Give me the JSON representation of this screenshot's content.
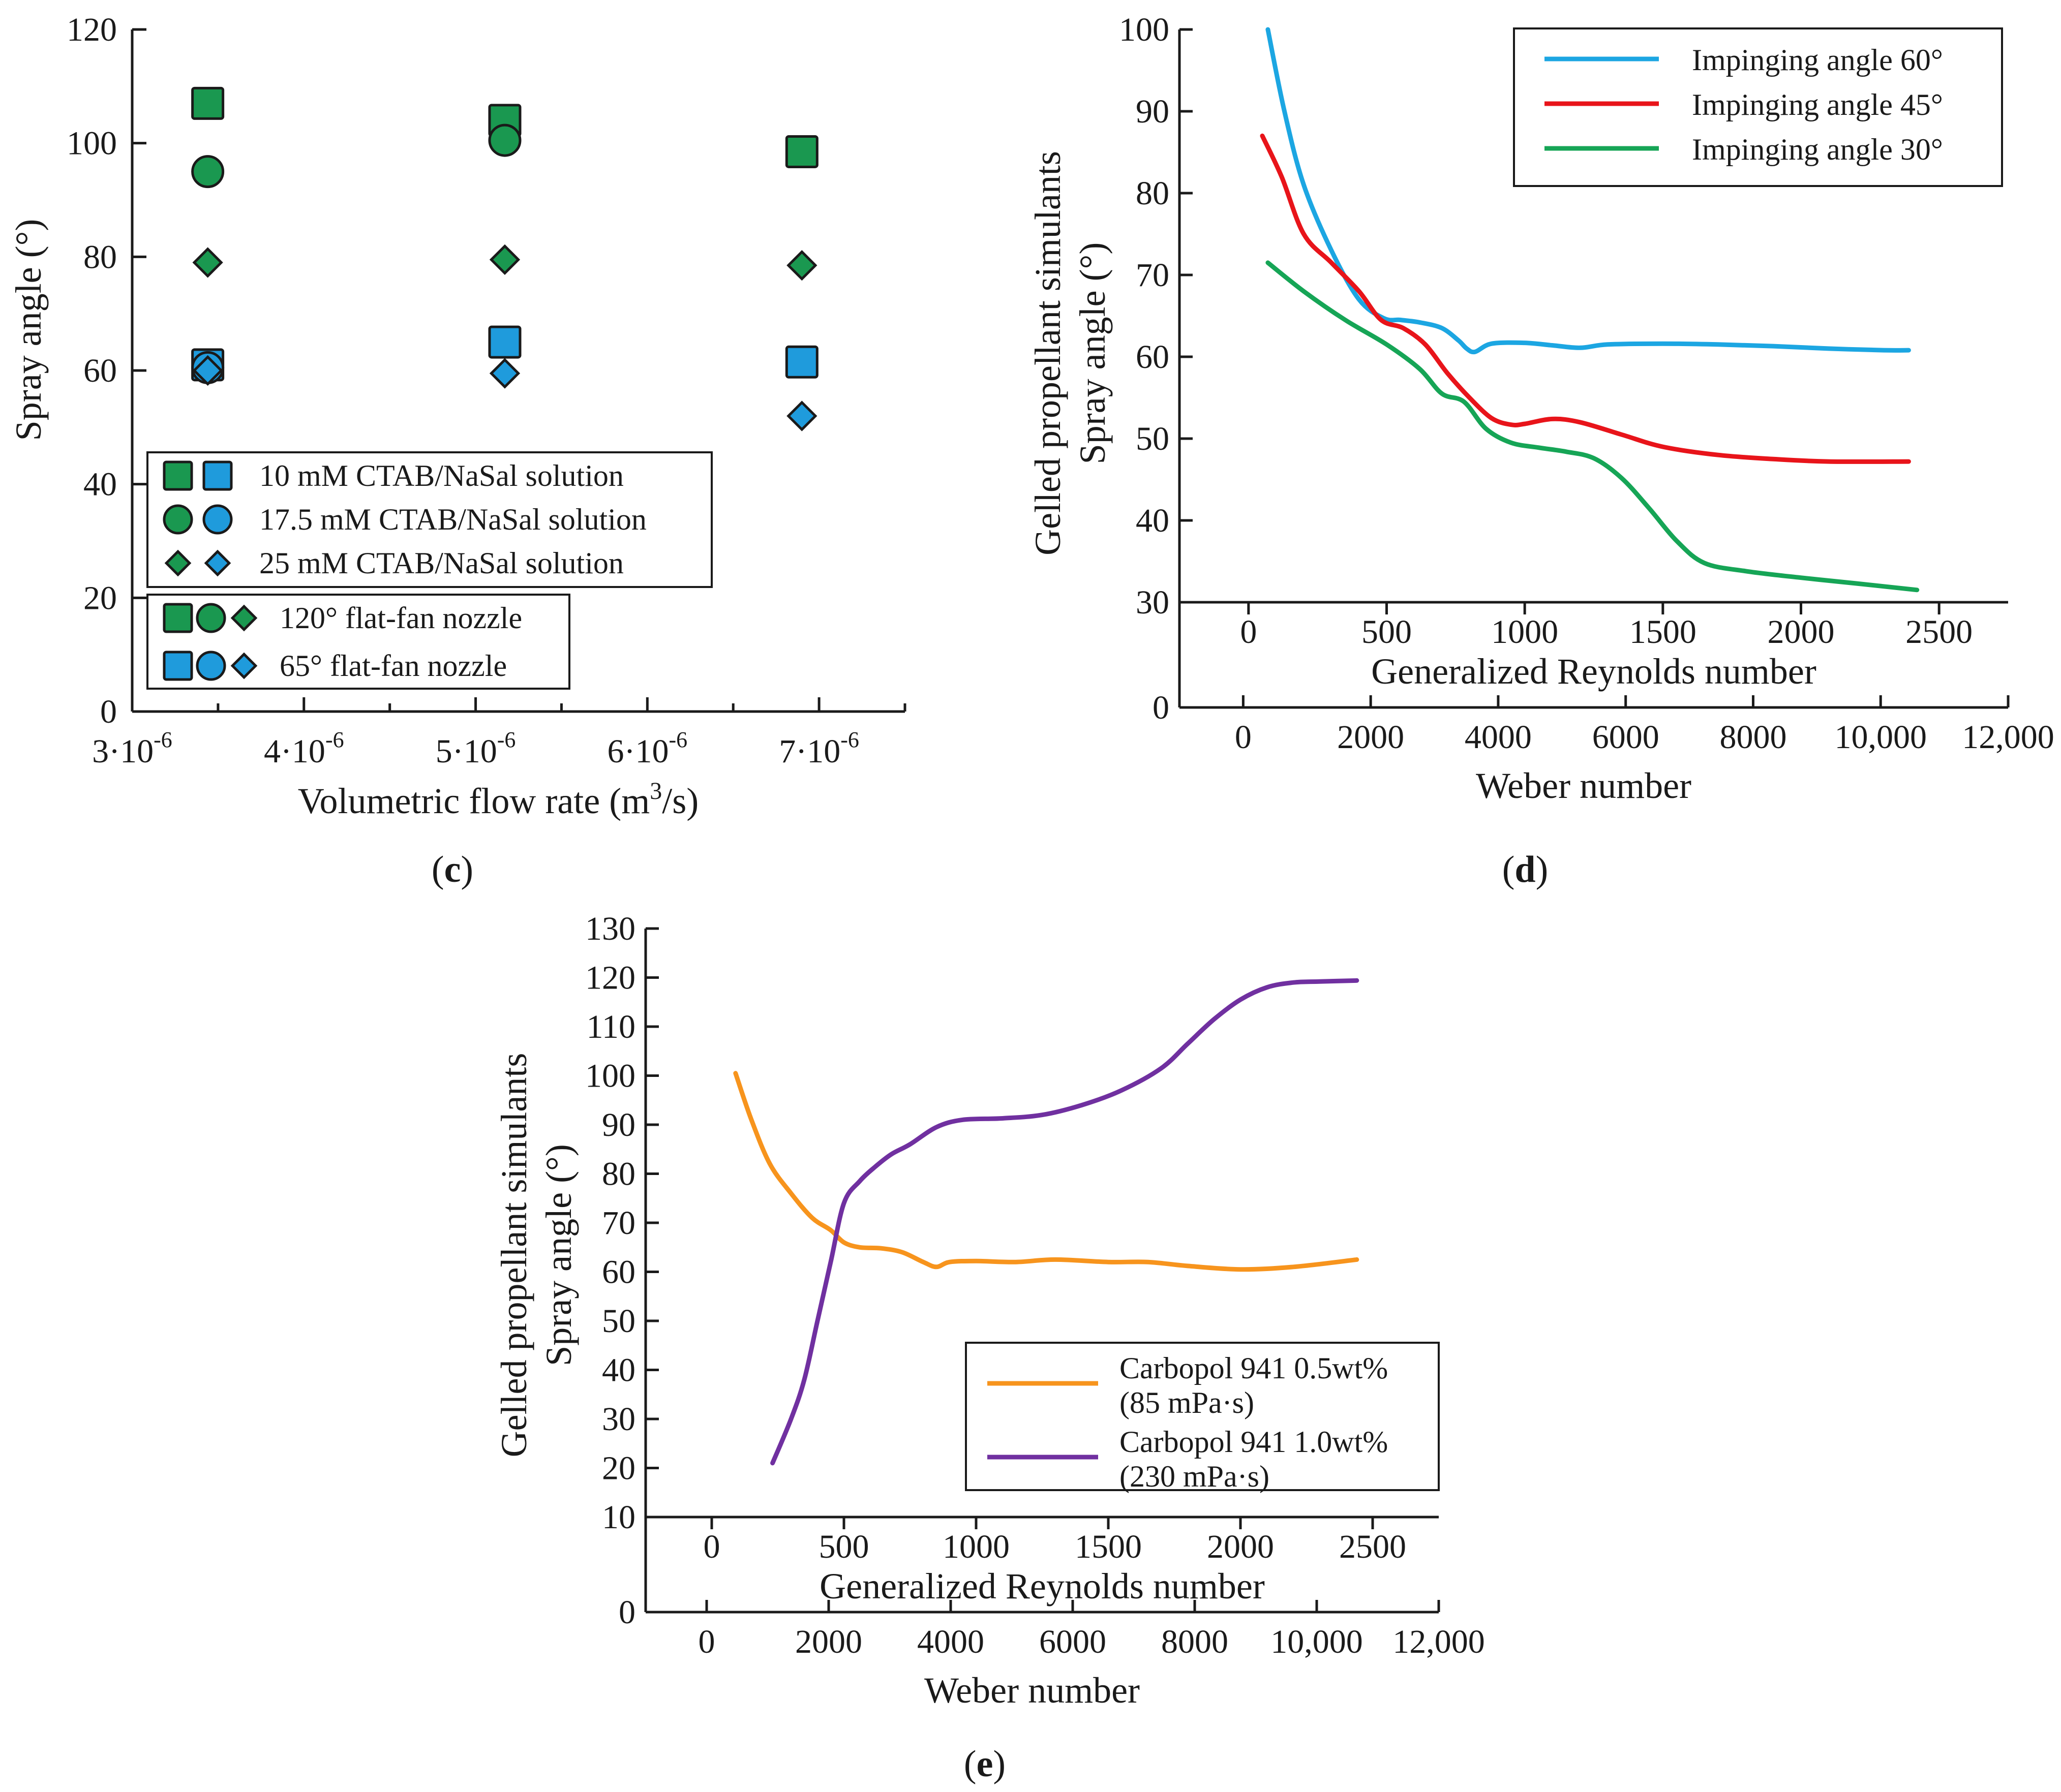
{
  "colors": {
    "green": "#1a9850",
    "blue": "#1f9bdc",
    "sky": "#1ca6e2",
    "red": "#e8141a",
    "green_line": "#16a556",
    "orange": "#f7941d",
    "purple": "#7030a0",
    "axis": "#1a1a1a"
  },
  "panels": {
    "c": {
      "label_prefix": "(",
      "label": "c",
      "label_suffix": ")"
    },
    "d": {
      "label_prefix": "(",
      "label": "d",
      "label_suffix": ")"
    },
    "e": {
      "label_prefix": "(",
      "label": "e",
      "label_suffix": ")"
    }
  },
  "chart_data": [
    {
      "id": "c",
      "type": "scatter",
      "xlabel": "Volumetric flow rate (m³/s)",
      "xlabel_parts": {
        "before": "Volumetric flow rate (m",
        "sup": "3",
        "after": "/s)"
      },
      "ylabel": "Spray angle (°)",
      "xlim": [
        3e-06,
        7.5e-06
      ],
      "ylim": [
        0,
        120
      ],
      "xticks": [
        {
          "value": 3e-06,
          "base": "3·10",
          "exp": "-6"
        },
        {
          "value": 4e-06,
          "base": "4·10",
          "exp": "-6"
        },
        {
          "value": 5e-06,
          "base": "5·10",
          "exp": "-6"
        },
        {
          "value": 6e-06,
          "base": "6·10",
          "exp": "-6"
        },
        {
          "value": 7e-06,
          "base": "7·10",
          "exp": "-6"
        }
      ],
      "yticks": [
        0,
        20,
        40,
        60,
        80,
        100,
        120
      ],
      "series": [
        {
          "name": "10 mM CTAB/NaSal, 120° flat-fan nozzle",
          "marker": "square",
          "color": "green",
          "x": [
            3.44e-06,
            5.17e-06,
            6.9e-06
          ],
          "y": [
            107,
            104,
            98.5
          ]
        },
        {
          "name": "17.5 mM CTAB/NaSal, 120° flat-fan nozzle",
          "marker": "circle",
          "color": "green",
          "x": [
            3.44e-06,
            5.17e-06
          ],
          "y": [
            95,
            100.5
          ]
        },
        {
          "name": "25 mM CTAB/NaSal, 120° flat-fan nozzle",
          "marker": "diamond",
          "color": "green",
          "x": [
            3.44e-06,
            5.17e-06,
            6.9e-06
          ],
          "y": [
            79,
            79.5,
            78.5
          ]
        },
        {
          "name": "10 mM CTAB/NaSal, 65° flat-fan nozzle",
          "marker": "square",
          "color": "blue",
          "x": [
            3.44e-06,
            5.17e-06,
            6.9e-06
          ],
          "y": [
            61,
            65,
            61.5
          ]
        },
        {
          "name": "17.5 mM CTAB/NaSal, 65° flat-fan nozzle",
          "marker": "circle",
          "color": "blue",
          "x": [
            3.44e-06
          ],
          "y": [
            60.5
          ]
        },
        {
          "name": "25 mM CTAB/NaSal, 65° flat-fan nozzle",
          "marker": "diamond",
          "color": "blue",
          "x": [
            3.44e-06,
            5.17e-06,
            6.9e-06
          ],
          "y": [
            60,
            59.5,
            52
          ]
        }
      ],
      "legend1": [
        {
          "markers": [
            "square",
            "square"
          ],
          "text": "10 mM CTAB/NaSal solution"
        },
        {
          "markers": [
            "circle",
            "circle"
          ],
          "text": "17.5 mM CTAB/NaSal solution"
        },
        {
          "markers": [
            "diamond",
            "diamond"
          ],
          "text": "25 mM CTAB/NaSal solution"
        }
      ],
      "legend2": [
        {
          "color": "green",
          "text": "120° flat-fan nozzle"
        },
        {
          "color": "blue",
          "text": "65° flat-fan nozzle"
        }
      ]
    },
    {
      "id": "d",
      "type": "line",
      "ylabel_line1": "Gelled propellant simulants",
      "ylabel_line2": "Spray angle (°)",
      "xlabel_top": "Generalized Reynolds number",
      "xlabel_bottom": "Weber number",
      "ylim": [
        30,
        100
      ],
      "yticks": [
        30,
        40,
        50,
        60,
        70,
        80,
        90,
        100
      ],
      "xlim_top": [
        -250,
        2750
      ],
      "xticks_top": [
        {
          "value": 0,
          "label": "0"
        },
        {
          "value": 500,
          "label": "500"
        },
        {
          "value": 1000,
          "label": "1000"
        },
        {
          "value": 1500,
          "label": "1500"
        },
        {
          "value": 2000,
          "label": "2000"
        },
        {
          "value": 2500,
          "label": "2500"
        }
      ],
      "xlim_bottom": [
        -1000,
        12000
      ],
      "xticks_bottom": [
        {
          "value": 0,
          "label": "0"
        },
        {
          "value": 2000,
          "label": "2000"
        },
        {
          "value": 4000,
          "label": "4000"
        },
        {
          "value": 6000,
          "label": "6000"
        },
        {
          "value": 8000,
          "label": "8000"
        },
        {
          "value": 10000,
          "label": "10,000"
        },
        {
          "value": 12000,
          "label": "12,000"
        }
      ],
      "bottom_axis_zero": "0",
      "series": [
        {
          "name": "Impinging angle 60°",
          "color": "sky",
          "x": [
            70,
            130,
            200,
            300,
            400,
            490,
            550,
            620,
            700,
            760,
            790,
            820,
            880,
            1000,
            1100,
            1200,
            1300,
            1500,
            1700,
            1900,
            2100,
            2300,
            2390
          ],
          "y": [
            100,
            90,
            81,
            73,
            67,
            64.7,
            64.5,
            64.2,
            63.5,
            62,
            61,
            60.6,
            61.6,
            61.7,
            61.4,
            61.1,
            61.5,
            61.6,
            61.5,
            61.3,
            61,
            60.8,
            60.8
          ]
        },
        {
          "name": "Impinging angle 45°",
          "color": "red",
          "x": [
            50,
            120,
            200,
            300,
            400,
            480,
            560,
            640,
            720,
            800,
            880,
            950,
            1000,
            1100,
            1200,
            1350,
            1500,
            1700,
            1900,
            2100,
            2390
          ],
          "y": [
            87,
            82,
            75,
            71.5,
            68,
            64.5,
            63.5,
            61.5,
            58,
            55,
            52.5,
            51.7,
            51.8,
            52.4,
            52,
            50.5,
            49,
            48,
            47.5,
            47.2,
            47.2
          ]
        },
        {
          "name": "Impinging angle 30°",
          "color": "green_line",
          "x": [
            70,
            200,
            350,
            500,
            620,
            700,
            780,
            860,
            950,
            1050,
            1150,
            1250,
            1350,
            1450,
            1550,
            1650,
            1800,
            2000,
            2200,
            2420
          ],
          "y": [
            71.5,
            68,
            64.5,
            61.5,
            58.5,
            55.5,
            54.5,
            51.2,
            49.5,
            48.9,
            48.4,
            47.6,
            45.2,
            41.5,
            37.5,
            34.8,
            33.8,
            33,
            32.3,
            31.5
          ]
        }
      ]
    },
    {
      "id": "e",
      "type": "line",
      "ylabel_line1": "Gelled propellant simulants",
      "ylabel_line2": "Spray angle (°)",
      "xlabel_top": "Generalized Reynolds number",
      "xlabel_bottom": "Weber number",
      "ylim": [
        10,
        130
      ],
      "yticks": [
        10,
        20,
        30,
        40,
        50,
        60,
        70,
        80,
        90,
        100,
        110,
        120,
        130
      ],
      "xlim_top": [
        -250,
        2750
      ],
      "xticks_top": [
        {
          "value": 0,
          "label": "0"
        },
        {
          "value": 500,
          "label": "500"
        },
        {
          "value": 1000,
          "label": "1000"
        },
        {
          "value": 1500,
          "label": "1500"
        },
        {
          "value": 2000,
          "label": "2000"
        },
        {
          "value": 2500,
          "label": "2500"
        }
      ],
      "xlim_bottom": [
        -1000,
        12000
      ],
      "xticks_bottom": [
        {
          "value": 0,
          "label": "0"
        },
        {
          "value": 2000,
          "label": "2000"
        },
        {
          "value": 4000,
          "label": "4000"
        },
        {
          "value": 6000,
          "label": "6000"
        },
        {
          "value": 8000,
          "label": "8000"
        },
        {
          "value": 10000,
          "label": "10,000"
        },
        {
          "value": 12000,
          "label": "12,000"
        }
      ],
      "bottom_axis_zero": "0",
      "series": [
        {
          "name": "Carbopol 941 0.5wt% (85 mPa·s)",
          "legend_line1": "Carbopol 941 0.5wt%",
          "legend_line2": "(85 mPa·s)",
          "color": "orange",
          "x": [
            90,
            150,
            220,
            300,
            380,
            450,
            500,
            560,
            640,
            720,
            800,
            850,
            900,
            1000,
            1150,
            1300,
            1500,
            1650,
            1800,
            2000,
            2200,
            2440
          ],
          "y": [
            100.5,
            91,
            82,
            76,
            71,
            68.5,
            66,
            65,
            64.8,
            64,
            62,
            61,
            62,
            62.2,
            62,
            62.5,
            62,
            62,
            61.2,
            60.5,
            61,
            62.5
          ]
        },
        {
          "name": "Carbopol 941 1.0wt% (230 mPa·s)",
          "legend_line1": "Carbopol 941 1.0wt%",
          "legend_line2": "(230 mPa·s)",
          "color": "purple",
          "x": [
            230,
            300,
            350,
            400,
            450,
            500,
            560,
            620,
            680,
            750,
            850,
            950,
            1100,
            1250,
            1400,
            1550,
            1700,
            1800,
            1900,
            2000,
            2100,
            2200,
            2300,
            2440
          ],
          "y": [
            21,
            30,
            38,
            50,
            62,
            74,
            78.5,
            81.5,
            84,
            86,
            89.5,
            91,
            91.3,
            92,
            94,
            97,
            101.5,
            106.5,
            111.5,
            115.5,
            118,
            119,
            119.2,
            119.4
          ]
        }
      ]
    }
  ]
}
